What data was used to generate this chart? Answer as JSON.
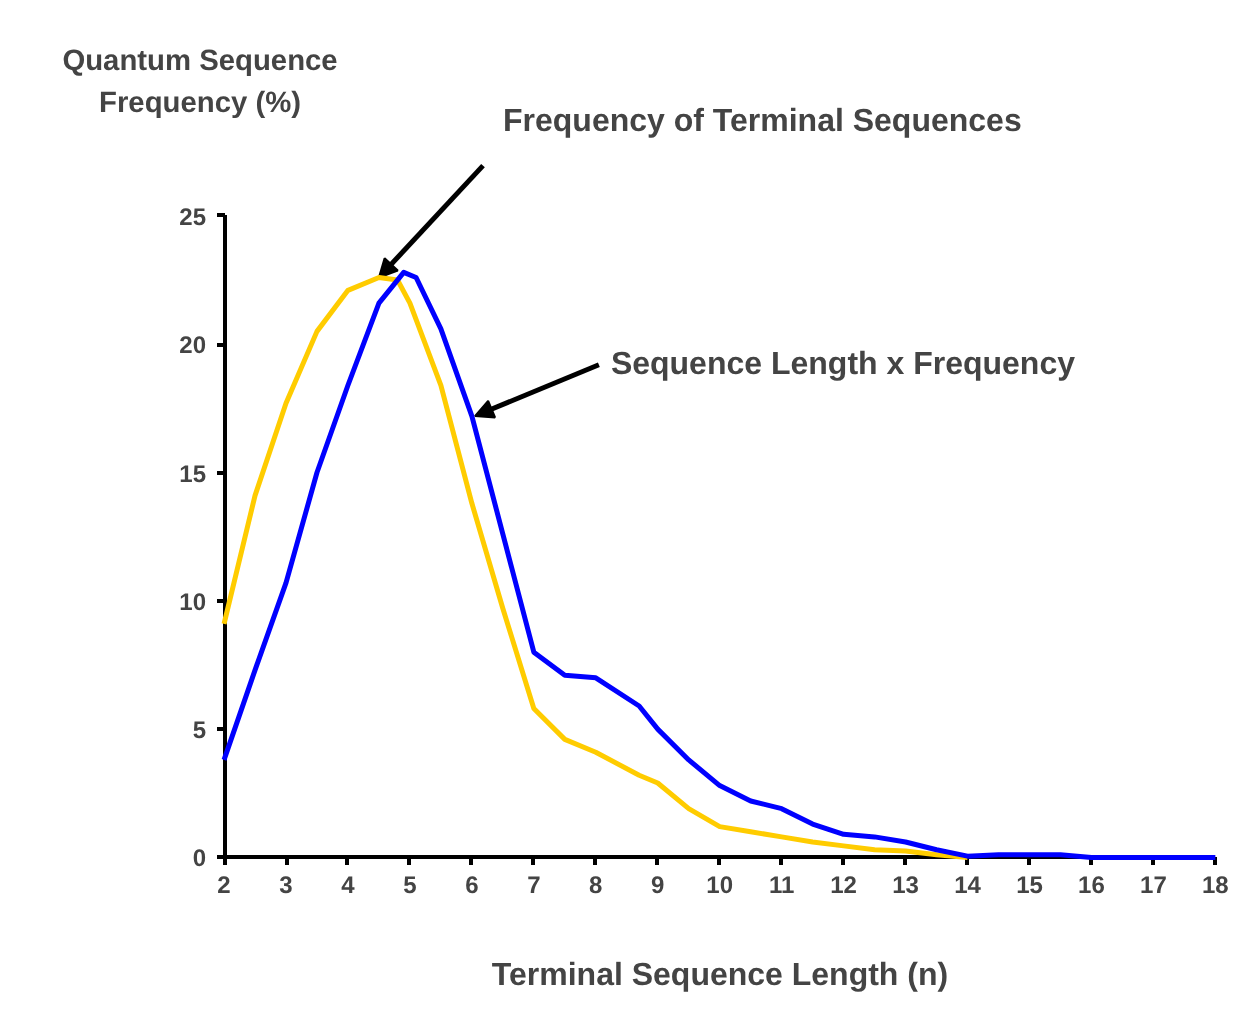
{
  "chart_data": {
    "type": "line",
    "ylabel": "Quantum Sequence\nFrequency (%)",
    "xlabel": "Terminal Sequence Length (n)",
    "xlim": [
      2,
      18
    ],
    "xticks": [
      2,
      3,
      4,
      5,
      6,
      7,
      8,
      9,
      10,
      11,
      12,
      13,
      14,
      15,
      16,
      17,
      18
    ],
    "ylim": [
      0,
      25
    ],
    "yticks": [
      0,
      5,
      10,
      15,
      20,
      25
    ],
    "grid": false,
    "marker": "none",
    "line_style": "solid",
    "series": [
      {
        "color": "#ffcc00",
        "x": [
          2,
          2.5,
          3,
          3.5,
          4,
          4.5,
          4.8,
          5,
          5.5,
          6,
          6.5,
          7,
          7.5,
          8,
          8.7,
          9,
          9.5,
          10,
          10.5,
          11,
          11.5,
          12,
          12.5,
          13,
          13.5,
          14
        ],
        "values": [
          9.1,
          14.1,
          17.7,
          20.5,
          22.1,
          22.6,
          22.5,
          21.6,
          18.4,
          13.8,
          9.7,
          5.8,
          4.6,
          4.1,
          3.2,
          2.9,
          1.9,
          1.2,
          1.0,
          0.8,
          0.6,
          0.45,
          0.3,
          0.25,
          0.1,
          0
        ]
      },
      {
        "color": "#0000ff",
        "x": [
          2,
          2.5,
          3,
          3.5,
          4,
          4.5,
          4.9,
          5.1,
          5.5,
          6,
          6.5,
          7,
          7.5,
          8,
          8.7,
          9,
          9.5,
          10,
          10.5,
          11,
          11.5,
          12,
          12.5,
          13,
          13.5,
          14,
          14.5,
          15,
          15.5,
          16,
          18
        ],
        "values": [
          3.8,
          7.3,
          10.7,
          15.0,
          18.4,
          21.6,
          22.8,
          22.6,
          20.6,
          17.2,
          12.6,
          8.0,
          7.1,
          7.0,
          5.9,
          5.0,
          3.8,
          2.8,
          2.2,
          1.9,
          1.3,
          0.9,
          0.8,
          0.6,
          0.3,
          0.05,
          0.1,
          0.1,
          0.1,
          0,
          0
        ]
      }
    ],
    "annotations": [
      {
        "text": "Frequency of Terminal Sequences",
        "x": 4.5,
        "y": 22.6
      },
      {
        "text": "Sequence Length x Frequency",
        "x": 6.05,
        "y": 17.2
      }
    ]
  }
}
